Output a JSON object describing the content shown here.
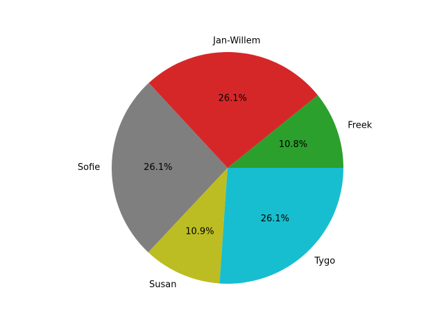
{
  "chart_data": {
    "type": "pie",
    "title": "",
    "categories": [
      "Freek",
      "Jan-Willem",
      "Sofie",
      "Susan",
      "Tygo"
    ],
    "values": [
      10.8,
      26.1,
      26.1,
      10.9,
      26.1
    ],
    "value_labels": [
      "10.8%",
      "26.1%",
      "26.1%",
      "10.9%",
      "26.1%"
    ],
    "colors": [
      "#2ca02c",
      "#d62728",
      "#7f7f7f",
      "#bcbd22",
      "#17becf"
    ],
    "start_angle_deg": 0,
    "direction": "counterclockwise",
    "legend": "none"
  }
}
